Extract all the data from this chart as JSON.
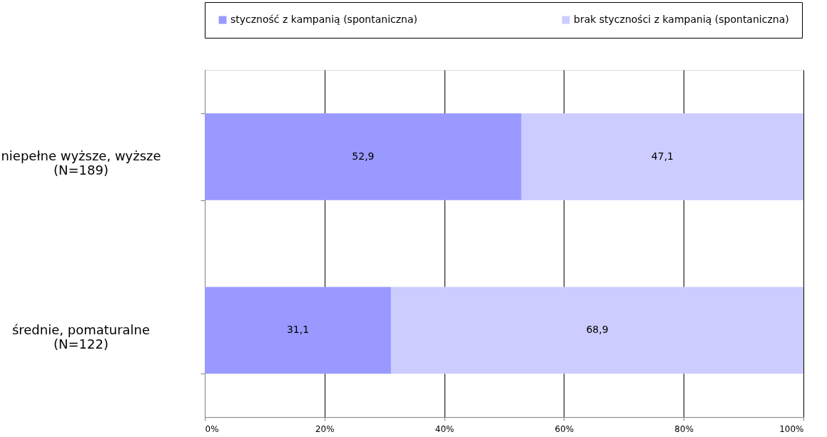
{
  "chart_data": {
    "type": "bar",
    "orientation": "horizontal",
    "stacked": true,
    "categories": [
      "niepełne wyższe, wyższe\n(N=189)",
      "średnie, pomaturalne\n(N=122)"
    ],
    "series": [
      {
        "name": "styczność z kampanią (spontaniczna)",
        "color": "#9999ff",
        "values": [
          52.9,
          31.1
        ],
        "value_labels": [
          "52,9",
          "31,1"
        ]
      },
      {
        "name": "brak styczności z kampanią (spontaniczna)",
        "color": "#ccccff",
        "values": [
          47.1,
          68.9
        ],
        "value_labels": [
          "47,1",
          "68,9"
        ]
      }
    ],
    "xlim": [
      0,
      100
    ],
    "xticks": [
      {
        "value": 0,
        "label": "0%"
      },
      {
        "value": 20,
        "label": "20%"
      },
      {
        "value": 40,
        "label": "40%"
      },
      {
        "value": 60,
        "label": "60%"
      },
      {
        "value": 80,
        "label": "80%"
      },
      {
        "value": 100,
        "label": "100%"
      }
    ],
    "grid": "x",
    "legend": "top"
  }
}
